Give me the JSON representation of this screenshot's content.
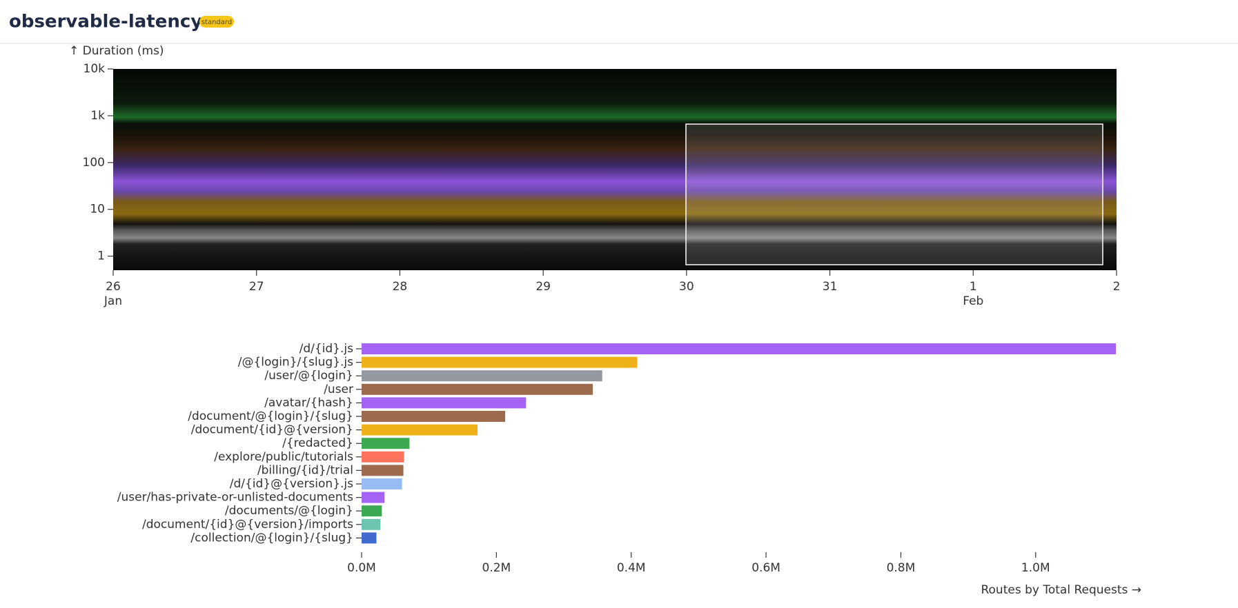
{
  "header": {
    "title": "observable-latency",
    "badge": "standard"
  },
  "chart_data": [
    {
      "type": "heatmap",
      "y_label": "↑ Duration (ms)",
      "log_y": true,
      "ylim": [
        0.5,
        10000
      ],
      "yticks": [
        {
          "value": 10000,
          "label": "10k"
        },
        {
          "value": 1000,
          "label": "1k"
        },
        100,
        10,
        1
      ],
      "xticks": [
        "26",
        "27",
        "28",
        "29",
        "30",
        "31",
        "1",
        "2"
      ],
      "xtick_months": [
        "Jan",
        null,
        null,
        null,
        null,
        null,
        "Feb",
        null
      ]
    },
    {
      "type": "hbar",
      "x_label": "Routes by Total Requests →",
      "categories": [
        "/d/{id}.js",
        "/@{login}/{slug}.js",
        "/user/@{login}",
        "/user",
        "/avatar/{hash}",
        "/document/@{login}/{slug}",
        "/document/{id}@{version}",
        "/{redacted}",
        "/explore/public/tutorials",
        "/billing/{id}/trial",
        "/d/{id}@{version}.js",
        "/user/has-private-or-unlisted-documents",
        "/documents/@{login}",
        "/document/{id}@{version}/imports",
        "/collection/@{login}/{slug}"
      ],
      "values": [
        1119000,
        409000,
        357000,
        343000,
        244000,
        213000,
        172000,
        71000,
        63000,
        62000,
        60000,
        34000,
        30000,
        28000,
        22000
      ],
      "colors": [
        "#a463f2",
        "#efb118",
        "#9498a0",
        "#9c6b4e",
        "#a463f2",
        "#9c6b4e",
        "#efb118",
        "#3ca951",
        "#ff725c",
        "#9c6b4e",
        "#97bbf5",
        "#a463f2",
        "#3ca951",
        "#6cc5b0",
        "#4269d0"
      ],
      "xlim": [
        0,
        1120000
      ],
      "xticks": [
        {
          "value": 0,
          "label": "0.0M"
        },
        {
          "value": 200000,
          "label": "0.2M"
        },
        {
          "value": 400000,
          "label": "0.4M"
        },
        {
          "value": 600000,
          "label": "0.6M"
        },
        {
          "value": 800000,
          "label": "0.8M"
        },
        {
          "value": 1000000,
          "label": "1.0M"
        }
      ]
    }
  ]
}
